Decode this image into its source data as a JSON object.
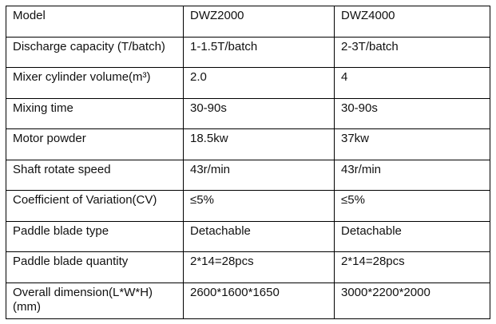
{
  "table": {
    "rows": [
      [
        "Model",
        "DWZ2000",
        "DWZ4000"
      ],
      [
        "Discharge capacity (T/batch)",
        "1-1.5T/batch",
        "2-3T/batch"
      ],
      [
        "Mixer cylinder volume(m³)",
        "2.0",
        "4"
      ],
      [
        "Mixing time",
        "30-90s",
        "30-90s"
      ],
      [
        "Motor powder",
        "18.5kw",
        "37kw"
      ],
      [
        "Shaft rotate speed",
        "43r/min",
        "43r/min"
      ],
      [
        "Coefficient of Variation(CV)",
        "≤5%",
        "≤5%"
      ],
      [
        "Paddle blade type",
        "Detachable",
        "Detachable"
      ],
      [
        "Paddle blade quantity",
        "2*14=28pcs",
        "2*14=28pcs"
      ],
      [
        "Overall dimension(L*W*H)(mm)",
        "2600*1600*1650",
        "3000*2200*2000"
      ]
    ]
  }
}
